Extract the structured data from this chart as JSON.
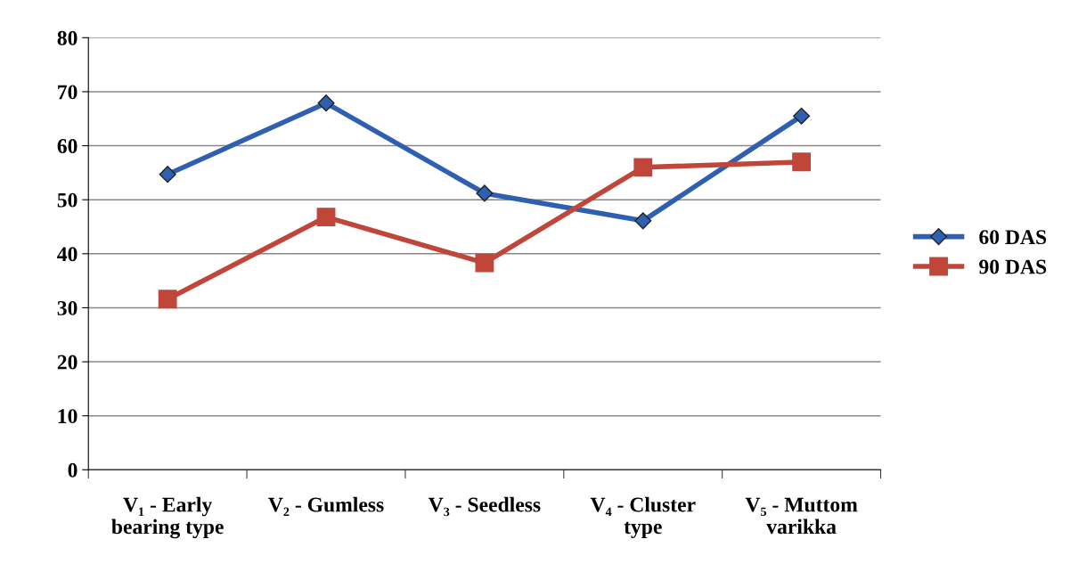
{
  "chart_data": {
    "type": "line",
    "categories": [
      "V₁ - Early\nbearing type",
      "V₂ - Gumless",
      "V₃ - Seedless",
      "V₄ - Cluster\ntype",
      "V₅ - Muttom\nvarikka"
    ],
    "series": [
      {
        "name": "60 DAS",
        "color": "#2e5fb0",
        "marker": "diamond",
        "values": [
          54.7,
          67.9,
          51.2,
          46.1,
          65.5
        ]
      },
      {
        "name": "90 DAS",
        "color": "#c0463a",
        "marker": "square",
        "values": [
          31.6,
          46.8,
          38.3,
          56.0,
          57.0
        ]
      }
    ],
    "ylim": [
      0,
      80
    ],
    "yticks": [
      0,
      10,
      20,
      30,
      40,
      50,
      60,
      70,
      80
    ],
    "grid": "y",
    "legend": "right",
    "line_style": "solid"
  }
}
